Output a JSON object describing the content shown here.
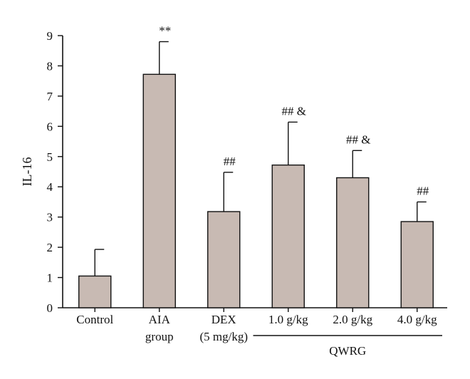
{
  "chart_data": {
    "type": "bar",
    "ylabel": "IL-16",
    "ylim": [
      0,
      9
    ],
    "yticks": [
      0,
      1,
      2,
      3,
      4,
      5,
      6,
      7,
      8,
      9
    ],
    "categories": [
      [
        "Control"
      ],
      [
        "AIA",
        "group"
      ],
      [
        "DEX",
        "(5 mg/kg)"
      ],
      [
        "1.0 g/kg"
      ],
      [
        "2.0 g/kg"
      ],
      [
        "4.0 g/kg"
      ]
    ],
    "values": [
      1.05,
      7.72,
      3.18,
      4.72,
      4.3,
      2.85
    ],
    "errors": [
      0.88,
      1.08,
      1.3,
      1.42,
      0.9,
      0.65
    ],
    "annotations": [
      "",
      "**",
      "##",
      "## &",
      "## &",
      "##"
    ],
    "group_label": "QWRG",
    "bar_color": "#c8bab3"
  }
}
